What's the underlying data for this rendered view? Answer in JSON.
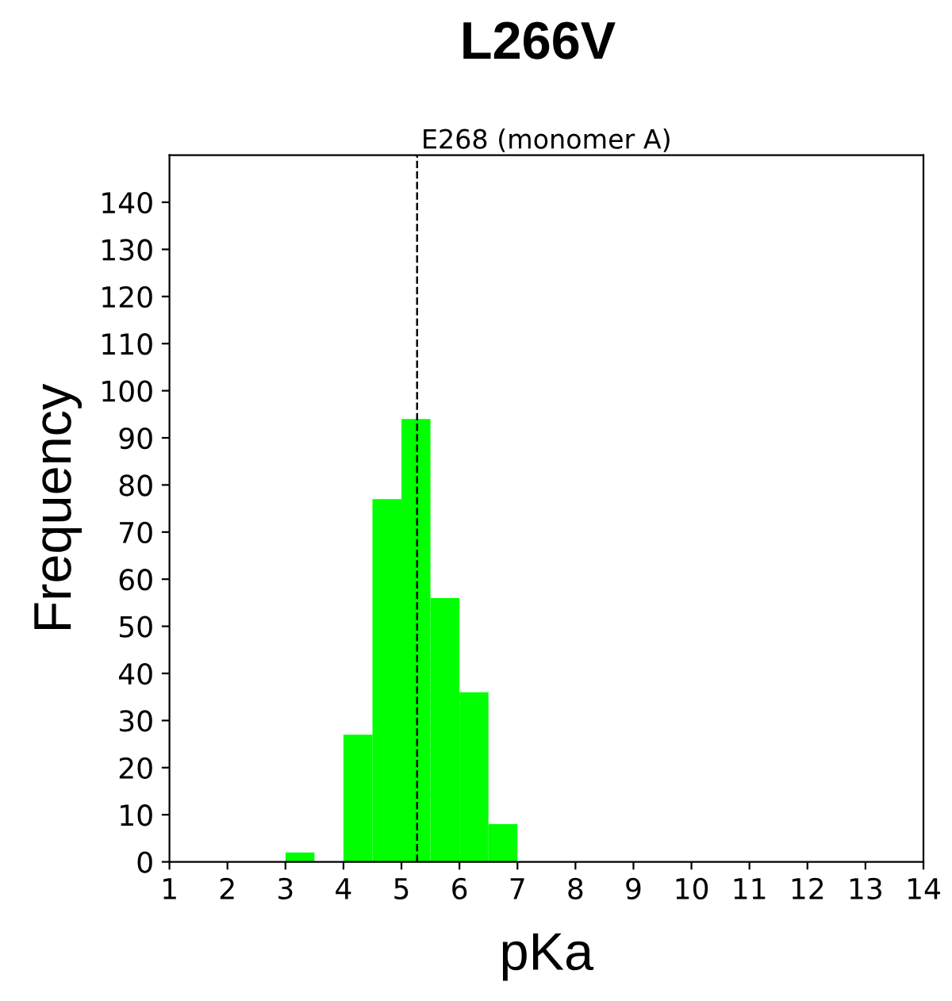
{
  "chart_data": {
    "type": "histogram",
    "title": "L266V",
    "subtitle": "E268 (monomer A)",
    "xlabel": "pKa",
    "ylabel": "Frequency",
    "bins": [
      3,
      3.5,
      4,
      4.5,
      5,
      5.5,
      6,
      6.5,
      7
    ],
    "values": [
      2,
      0,
      27,
      77,
      94,
      56,
      36,
      8
    ],
    "color": "#00ff00",
    "xlim": [
      1,
      14
    ],
    "xticks": [
      1,
      2,
      3,
      4,
      5,
      6,
      7,
      8,
      9,
      10,
      11,
      12,
      13,
      14
    ],
    "ylim": [
      0,
      150
    ],
    "yticks": [
      0,
      10,
      20,
      30,
      40,
      50,
      60,
      70,
      80,
      90,
      100,
      110,
      120,
      130,
      140
    ],
    "ref_lines": [
      {
        "axis": "x",
        "value": 5.27,
        "color": "#000000",
        "line_style": "dashed"
      }
    ],
    "grid": false
  }
}
